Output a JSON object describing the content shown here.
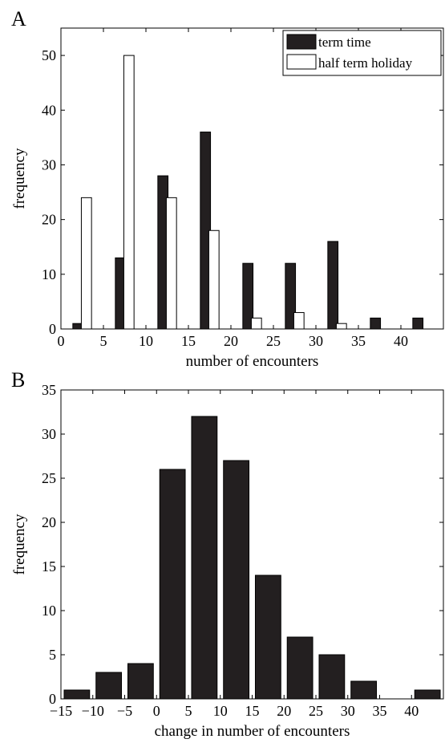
{
  "chart_data": [
    {
      "type": "bar",
      "panel_label": "A",
      "xlabel": "number of encounters",
      "ylabel": "frequency",
      "xlim": [
        0,
        45
      ],
      "ylim": [
        0,
        55
      ],
      "xticks": [
        0,
        5,
        10,
        15,
        20,
        25,
        30,
        35,
        40
      ],
      "yticks": [
        0,
        10,
        20,
        30,
        40,
        50
      ],
      "legend_position": "top-right",
      "series": [
        {
          "name": "term time",
          "color": "#231f20",
          "x": [
            2,
            7,
            12,
            17,
            22,
            27,
            32,
            37,
            42
          ],
          "values": [
            1,
            13,
            28,
            36,
            12,
            12,
            16,
            2,
            2
          ]
        },
        {
          "name": "half term holiday",
          "color": "#ffffff",
          "x": [
            3,
            8,
            13,
            18,
            23,
            28,
            33,
            38,
            43
          ],
          "values": [
            24,
            50,
            24,
            18,
            2,
            3,
            1,
            0,
            0
          ]
        }
      ]
    },
    {
      "type": "bar",
      "panel_label": "B",
      "xlabel": "change in number of encounters",
      "ylabel": "frequency",
      "xlim": [
        -15,
        45
      ],
      "ylim": [
        0,
        35
      ],
      "xticks": [
        -15,
        -10,
        -5,
        0,
        5,
        10,
        15,
        20,
        25,
        30,
        35,
        40
      ],
      "xtick_labels": [
        "−15",
        "−10",
        "−5",
        "0",
        "5",
        "10",
        "15",
        "20",
        "25",
        "30",
        "35",
        "40"
      ],
      "yticks": [
        0,
        5,
        10,
        15,
        20,
        25,
        30,
        35
      ],
      "bin_width": 5,
      "series": [
        {
          "color": "#231f20",
          "x": [
            -12.5,
            -7.5,
            -2.5,
            2.5,
            7.5,
            12.5,
            17.5,
            22.5,
            27.5,
            32.5,
            37.5,
            42.5
          ],
          "values": [
            1,
            3,
            4,
            26,
            32,
            27,
            14,
            7,
            5,
            2,
            0,
            1
          ]
        }
      ]
    }
  ]
}
